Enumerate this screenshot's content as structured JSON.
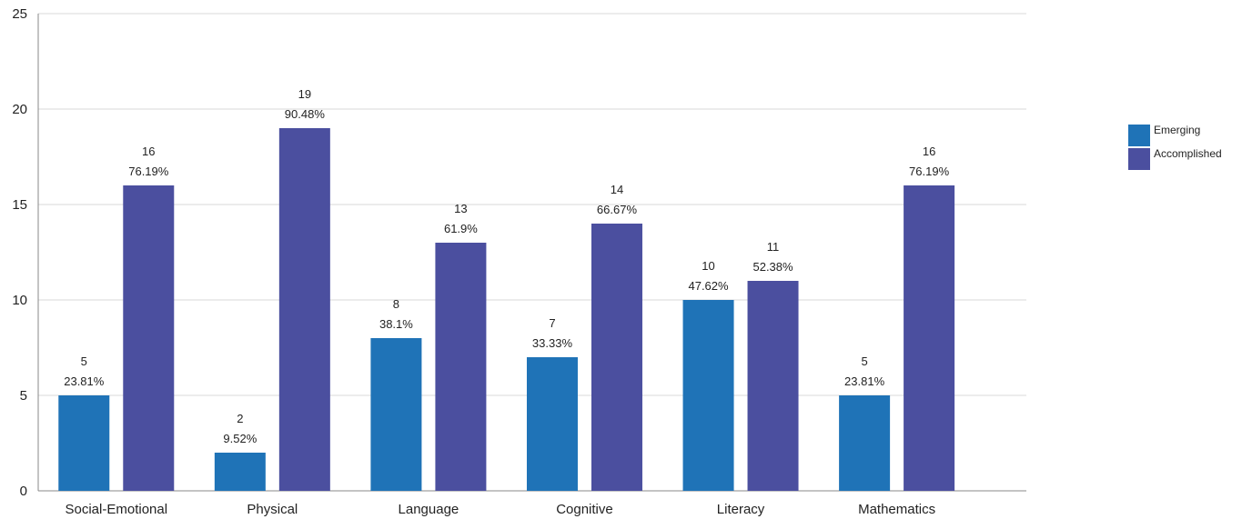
{
  "chart_data": {
    "type": "bar",
    "categories": [
      "Social-Emotional",
      "Physical",
      "Language",
      "Cognitive",
      "Literacy",
      "Mathematics"
    ],
    "series": [
      {
        "name": "Emerging",
        "color": "#1f73b7",
        "values": [
          5,
          2,
          8,
          7,
          10,
          5
        ],
        "percents": [
          "23.81%",
          "9.52%",
          "38.1%",
          "33.33%",
          "47.62%",
          "23.81%"
        ]
      },
      {
        "name": "Accomplished",
        "color": "#4b4f9f",
        "values": [
          16,
          19,
          13,
          14,
          11,
          16
        ],
        "percents": [
          "76.19%",
          "90.48%",
          "61.9%",
          "66.67%",
          "52.38%",
          "76.19%"
        ]
      }
    ],
    "yticks": [
      0,
      5,
      10,
      15,
      20,
      25
    ],
    "ylim": [
      0,
      25
    ],
    "grid": true,
    "legend_position": "right"
  }
}
